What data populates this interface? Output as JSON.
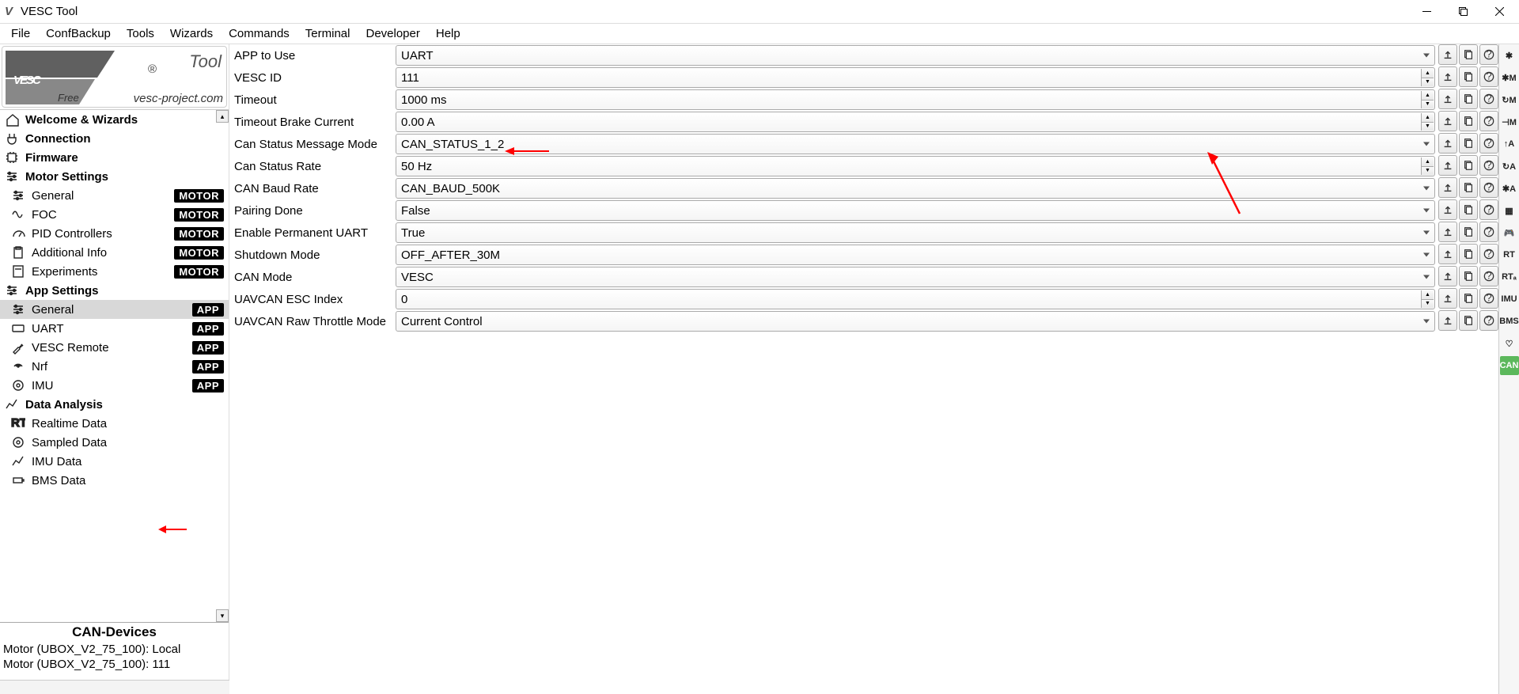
{
  "window": {
    "title": "VESC Tool"
  },
  "menu": [
    "File",
    "ConfBackup",
    "Tools",
    "Wizards",
    "Commands",
    "Terminal",
    "Developer",
    "Help"
  ],
  "logo": {
    "big": "VESC",
    "tool": "Tool",
    "reg": "®",
    "free": "Free",
    "url": "vesc-project.com"
  },
  "nav": {
    "sections": [
      {
        "label": "Welcome & Wizards",
        "icon": "home",
        "bold": true
      },
      {
        "label": "Connection",
        "icon": "plug",
        "bold": true
      },
      {
        "label": "Firmware",
        "icon": "chip",
        "bold": true
      },
      {
        "label": "Motor Settings",
        "icon": "sliders",
        "bold": true
      },
      {
        "label": "General",
        "icon": "sliders",
        "badge": "MOTOR",
        "sub": true
      },
      {
        "label": "FOC",
        "icon": "wave",
        "badge": "MOTOR",
        "sub": true
      },
      {
        "label": "PID Controllers",
        "icon": "gauge",
        "badge": "MOTOR",
        "sub": true
      },
      {
        "label": "Additional Info",
        "icon": "clipboard",
        "badge": "MOTOR",
        "sub": true
      },
      {
        "label": "Experiments",
        "icon": "calc",
        "badge": "MOTOR",
        "sub": true
      },
      {
        "label": "App Settings",
        "icon": "sliders",
        "bold": true
      },
      {
        "label": "General",
        "icon": "sliders",
        "badge": "APP",
        "sub": true,
        "selected": true
      },
      {
        "label": "UART",
        "icon": "keyboard",
        "badge": "APP",
        "sub": true
      },
      {
        "label": "VESC Remote",
        "icon": "wrench",
        "badge": "APP",
        "sub": true
      },
      {
        "label": "Nrf",
        "icon": "signal",
        "badge": "APP",
        "sub": true
      },
      {
        "label": "IMU",
        "icon": "target",
        "badge": "APP",
        "sub": true
      },
      {
        "label": "Data Analysis",
        "icon": "chart",
        "bold": true
      },
      {
        "label": "Realtime Data",
        "icon": "rt",
        "sub": true
      },
      {
        "label": "Sampled Data",
        "icon": "target",
        "sub": true
      },
      {
        "label": "IMU Data",
        "icon": "chart",
        "sub": true
      },
      {
        "label": "BMS Data",
        "icon": "battery",
        "sub": true
      }
    ]
  },
  "can": {
    "header": "CAN-Devices",
    "items": [
      "Motor (UBOX_V2_75_100): Local",
      "Motor (UBOX_V2_75_100): 111"
    ]
  },
  "params": [
    {
      "label": "APP to Use",
      "value": "UART",
      "type": "dropdown"
    },
    {
      "label": "VESC ID",
      "value": "111",
      "type": "spinner"
    },
    {
      "label": "Timeout",
      "value": "1000 ms",
      "type": "spinner"
    },
    {
      "label": "Timeout Brake Current",
      "value": "0.00 A",
      "type": "spinner"
    },
    {
      "label": "Can Status Message Mode",
      "value": "CAN_STATUS_1_2",
      "type": "dropdown",
      "arrow1": true
    },
    {
      "label": "Can Status Rate",
      "value": "50 Hz",
      "type": "spinner"
    },
    {
      "label": "CAN Baud Rate",
      "value": "CAN_BAUD_500K",
      "type": "dropdown"
    },
    {
      "label": "Pairing Done",
      "value": "False",
      "type": "dropdown"
    },
    {
      "label": "Enable Permanent UART",
      "value": "True",
      "type": "dropdown"
    },
    {
      "label": "Shutdown Mode",
      "value": "OFF_AFTER_30M",
      "type": "dropdown"
    },
    {
      "label": "CAN Mode",
      "value": "VESC",
      "type": "dropdown"
    },
    {
      "label": "UAVCAN ESC Index",
      "value": "0",
      "type": "spinner"
    },
    {
      "label": "UAVCAN Raw Throttle Mode",
      "value": "Current Control",
      "type": "dropdown"
    }
  ],
  "rightbar": [
    {
      "t": "✱"
    },
    {
      "t": "✱M"
    },
    {
      "t": "↻M"
    },
    {
      "t": "⊣M"
    },
    {
      "t": "↑A"
    },
    {
      "t": "↻A"
    },
    {
      "t": "✱A"
    },
    {
      "t": "▦"
    },
    {
      "t": "🎮"
    },
    {
      "t": "RT"
    },
    {
      "t": "RTₐ"
    },
    {
      "t": "IMU"
    },
    {
      "t": "BMS"
    },
    {
      "t": "♡"
    },
    {
      "t": "CAN",
      "green": true
    }
  ],
  "actions": {
    "upload": "↥",
    "read": "⎘",
    "help": "?"
  }
}
